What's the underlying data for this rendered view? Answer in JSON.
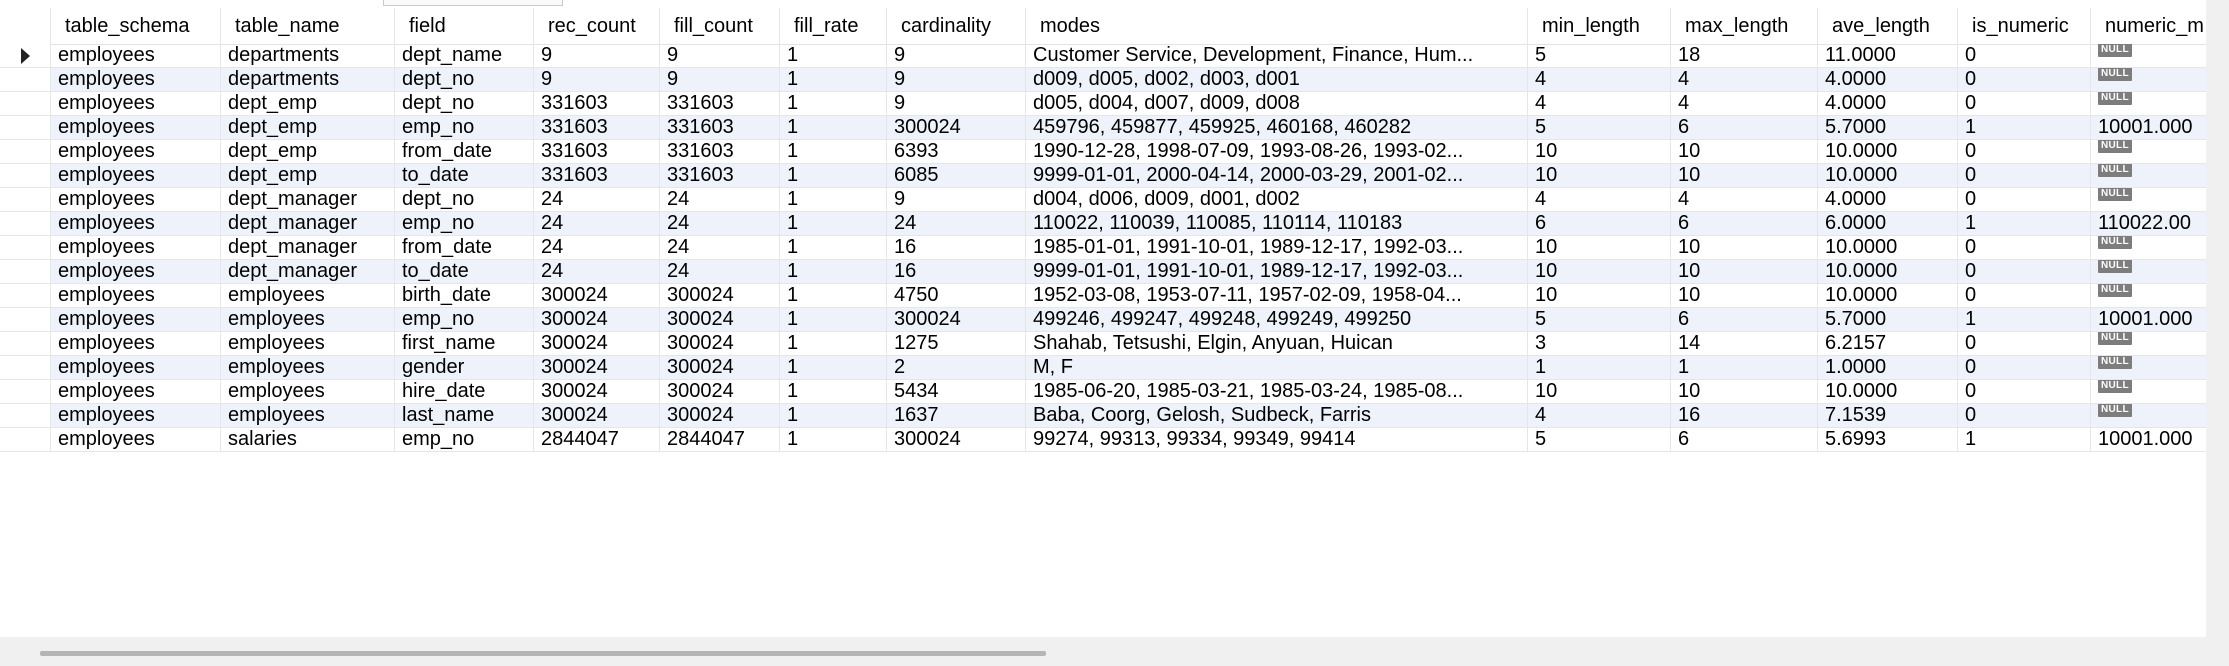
{
  "columns": {
    "table_schema": "table_schema",
    "table_name": "table_name",
    "field": "field",
    "rec_count": "rec_count",
    "fill_count": "fill_count",
    "fill_rate": "fill_rate",
    "cardinality": "cardinality",
    "modes": "modes",
    "min_length": "min_length",
    "max_length": "max_length",
    "ave_length": "ave_length",
    "is_numeric": "is_numeric",
    "numeric_min": "numeric_m"
  },
  "null_label": "NULL",
  "rows": [
    {
      "schema": "employees",
      "table": "departments",
      "field": "dept_name",
      "rec": "9",
      "fill": "9",
      "rate": "1",
      "card": "9",
      "modes": "Customer Service, Development, Finance, Hum...",
      "min": "5",
      "max": "18",
      "ave": "11.0000",
      "isnum": "0",
      "nummin": null
    },
    {
      "schema": "employees",
      "table": "departments",
      "field": "dept_no",
      "rec": "9",
      "fill": "9",
      "rate": "1",
      "card": "9",
      "modes": "d009, d005, d002, d003, d001",
      "min": "4",
      "max": "4",
      "ave": "4.0000",
      "isnum": "0",
      "nummin": null
    },
    {
      "schema": "employees",
      "table": "dept_emp",
      "field": "dept_no",
      "rec": "331603",
      "fill": "331603",
      "rate": "1",
      "card": "9",
      "modes": "d005, d004, d007, d009, d008",
      "min": "4",
      "max": "4",
      "ave": "4.0000",
      "isnum": "0",
      "nummin": null
    },
    {
      "schema": "employees",
      "table": "dept_emp",
      "field": "emp_no",
      "rec": "331603",
      "fill": "331603",
      "rate": "1",
      "card": "300024",
      "modes": "459796, 459877, 459925, 460168, 460282",
      "min": "5",
      "max": "6",
      "ave": "5.7000",
      "isnum": "1",
      "nummin": "10001.000"
    },
    {
      "schema": "employees",
      "table": "dept_emp",
      "field": "from_date",
      "rec": "331603",
      "fill": "331603",
      "rate": "1",
      "card": "6393",
      "modes": "1990-12-28, 1998-07-09, 1993-08-26, 1993-02...",
      "min": "10",
      "max": "10",
      "ave": "10.0000",
      "isnum": "0",
      "nummin": null
    },
    {
      "schema": "employees",
      "table": "dept_emp",
      "field": "to_date",
      "rec": "331603",
      "fill": "331603",
      "rate": "1",
      "card": "6085",
      "modes": "9999-01-01, 2000-04-14, 2000-03-29, 2001-02...",
      "min": "10",
      "max": "10",
      "ave": "10.0000",
      "isnum": "0",
      "nummin": null
    },
    {
      "schema": "employees",
      "table": "dept_manager",
      "field": "dept_no",
      "rec": "24",
      "fill": "24",
      "rate": "1",
      "card": "9",
      "modes": "d004, d006, d009, d001, d002",
      "min": "4",
      "max": "4",
      "ave": "4.0000",
      "isnum": "0",
      "nummin": null
    },
    {
      "schema": "employees",
      "table": "dept_manager",
      "field": "emp_no",
      "rec": "24",
      "fill": "24",
      "rate": "1",
      "card": "24",
      "modes": "110022, 110039, 110085, 110114, 110183",
      "min": "6",
      "max": "6",
      "ave": "6.0000",
      "isnum": "1",
      "nummin": "110022.00"
    },
    {
      "schema": "employees",
      "table": "dept_manager",
      "field": "from_date",
      "rec": "24",
      "fill": "24",
      "rate": "1",
      "card": "16",
      "modes": "1985-01-01, 1991-10-01, 1989-12-17, 1992-03...",
      "min": "10",
      "max": "10",
      "ave": "10.0000",
      "isnum": "0",
      "nummin": null
    },
    {
      "schema": "employees",
      "table": "dept_manager",
      "field": "to_date",
      "rec": "24",
      "fill": "24",
      "rate": "1",
      "card": "16",
      "modes": "9999-01-01, 1991-10-01, 1989-12-17, 1992-03...",
      "min": "10",
      "max": "10",
      "ave": "10.0000",
      "isnum": "0",
      "nummin": null
    },
    {
      "schema": "employees",
      "table": "employees",
      "field": "birth_date",
      "rec": "300024",
      "fill": "300024",
      "rate": "1",
      "card": "4750",
      "modes": "1952-03-08, 1953-07-11, 1957-02-09, 1958-04...",
      "min": "10",
      "max": "10",
      "ave": "10.0000",
      "isnum": "0",
      "nummin": null
    },
    {
      "schema": "employees",
      "table": "employees",
      "field": "emp_no",
      "rec": "300024",
      "fill": "300024",
      "rate": "1",
      "card": "300024",
      "modes": "499246, 499247, 499248, 499249, 499250",
      "min": "5",
      "max": "6",
      "ave": "5.7000",
      "isnum": "1",
      "nummin": "10001.000"
    },
    {
      "schema": "employees",
      "table": "employees",
      "field": "first_name",
      "rec": "300024",
      "fill": "300024",
      "rate": "1",
      "card": "1275",
      "modes": "Shahab, Tetsushi, Elgin, Anyuan, Huican",
      "min": "3",
      "max": "14",
      "ave": "6.2157",
      "isnum": "0",
      "nummin": null
    },
    {
      "schema": "employees",
      "table": "employees",
      "field": "gender",
      "rec": "300024",
      "fill": "300024",
      "rate": "1",
      "card": "2",
      "modes": "M, F",
      "min": "1",
      "max": "1",
      "ave": "1.0000",
      "isnum": "0",
      "nummin": null
    },
    {
      "schema": "employees",
      "table": "employees",
      "field": "hire_date",
      "rec": "300024",
      "fill": "300024",
      "rate": "1",
      "card": "5434",
      "modes": "1985-06-20, 1985-03-21, 1985-03-24, 1985-08...",
      "min": "10",
      "max": "10",
      "ave": "10.0000",
      "isnum": "0",
      "nummin": null
    },
    {
      "schema": "employees",
      "table": "employees",
      "field": "last_name",
      "rec": "300024",
      "fill": "300024",
      "rate": "1",
      "card": "1637",
      "modes": "Baba, Coorg, Gelosh, Sudbeck, Farris",
      "min": "4",
      "max": "16",
      "ave": "7.1539",
      "isnum": "0",
      "nummin": null
    },
    {
      "schema": "employees",
      "table": "salaries",
      "field": "emp_no",
      "rec": "2844047",
      "fill": "2844047",
      "rate": "1",
      "card": "300024",
      "modes": "99274, 99313, 99334, 99349, 99414",
      "min": "5",
      "max": "6",
      "ave": "5.6993",
      "isnum": "1",
      "nummin": "10001.000"
    }
  ],
  "selected_row": 0
}
